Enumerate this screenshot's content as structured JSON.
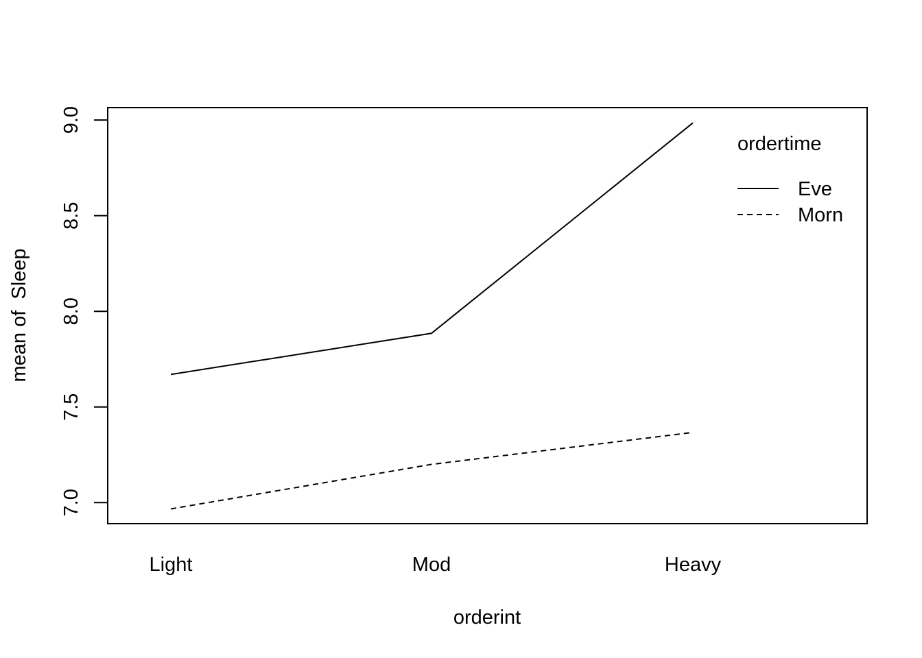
{
  "chart_data": {
    "type": "line",
    "title": "",
    "xlabel": "orderint",
    "ylabel": "mean of  Sleep",
    "categories": [
      "Light",
      "Mod",
      "Heavy"
    ],
    "yticks": [
      "7.0",
      "7.5",
      "8.0",
      "8.5",
      "9.0"
    ],
    "ylim": [
      6.89,
      9.065
    ],
    "grid": false,
    "legend": {
      "title": "ordertime",
      "placement": "top-right",
      "entries": [
        "Eve",
        "Morn"
      ]
    },
    "series": [
      {
        "name": "Eve",
        "line_style": "solid",
        "values": [
          7.67,
          7.885,
          8.985
        ]
      },
      {
        "name": "Morn",
        "line_style": "dashed",
        "values": [
          6.967,
          7.2,
          7.367
        ]
      }
    ]
  }
}
